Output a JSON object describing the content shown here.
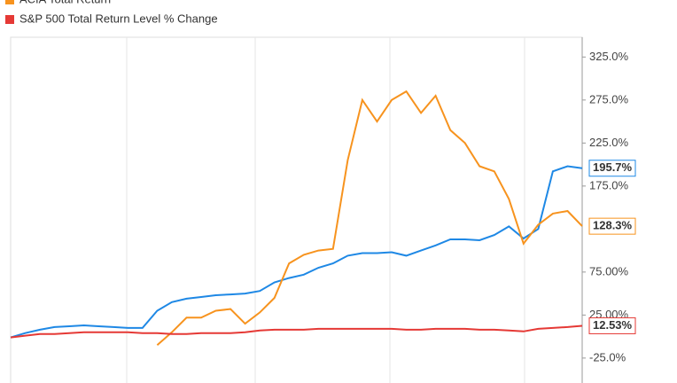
{
  "chart_data": {
    "type": "line",
    "ylim": [
      -54,
      348
    ],
    "yticks": [
      {
        "value": 325,
        "label": "325.0%"
      },
      {
        "value": 275,
        "label": "275.0%"
      },
      {
        "value": 225,
        "label": "225.0%"
      },
      {
        "value": 175,
        "label": "175.0%"
      },
      {
        "value": 75,
        "label": "75.00%"
      },
      {
        "value": 25,
        "label": "25.00%"
      },
      {
        "value": -25,
        "label": "-25.0%"
      }
    ],
    "series": [
      {
        "color": "#1e88e5",
        "last_label": "195.7%",
        "values": [
          -1,
          4,
          8,
          11,
          12,
          13,
          12,
          11,
          10,
          10,
          30,
          40,
          44,
          46,
          48,
          49,
          50,
          53,
          63,
          68,
          72,
          80,
          85,
          94,
          97,
          97,
          98,
          94,
          100,
          106,
          113,
          113,
          112,
          118,
          128,
          114,
          125,
          192,
          198,
          195.7
        ]
      },
      {
        "name": "ACIA Total Return",
        "color": "#f7931e",
        "last_label": "128.3%",
        "values": [
          null,
          null,
          null,
          null,
          null,
          null,
          null,
          null,
          null,
          null,
          -10,
          5,
          22,
          22,
          30,
          32,
          15,
          28,
          45,
          85,
          95,
          100,
          102,
          205,
          275,
          250,
          275,
          285,
          260,
          280,
          240,
          225,
          198,
          192,
          160,
          108,
          130,
          143,
          146,
          128.3
        ]
      },
      {
        "name": "S&P 500 Total Return Level % Change",
        "color": "#e53935",
        "last_label": "12.53%",
        "values": [
          -1,
          1,
          3,
          3,
          4,
          5,
          5,
          5,
          5,
          4,
          4,
          3,
          3,
          4,
          4,
          4,
          5,
          7,
          8,
          8,
          8,
          9,
          9,
          9,
          9,
          9,
          9,
          8,
          8,
          9,
          9,
          9,
          8,
          8,
          7,
          6,
          9,
          10,
          11,
          12.53
        ]
      }
    ]
  }
}
